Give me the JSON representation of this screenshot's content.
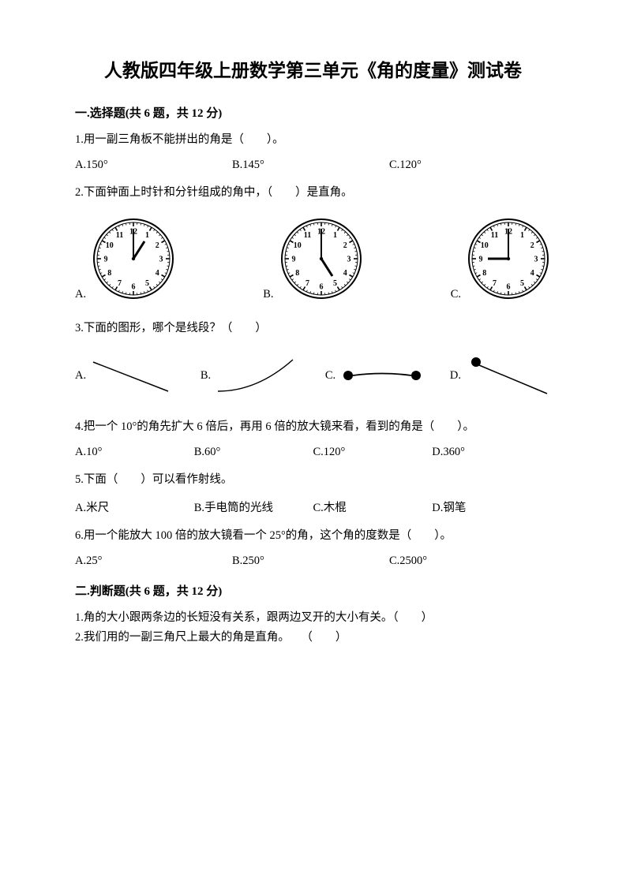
{
  "title": "人教版四年级上册数学第三单元《角的度量》测试卷",
  "section1": {
    "header": "一.选择题(共 6 题，共 12 分)",
    "q1": {
      "text": "1.用一副三角板不能拼出的角是（　　）。",
      "opts": [
        "A.150°",
        "B.145°",
        "C.120°"
      ]
    },
    "q2": {
      "text": "2.下面钟面上时针和分针组成的角中，（　　）是直角。",
      "labels": [
        "A.",
        "B.",
        "C."
      ],
      "clocks": [
        {
          "hourHandAngle": 30,
          "minuteHandAngle": 0
        },
        {
          "hourHandAngle": 150,
          "minuteHandAngle": 0
        },
        {
          "hourHandAngle": 270,
          "minuteHandAngle": 0
        }
      ],
      "clockStyle": {
        "outer_r": 50,
        "inner_r": 47,
        "face_fill": "#ffffff",
        "ring_stroke": "#000000",
        "tick_color": "#000000",
        "hand_color": "#000000",
        "num_font": 10
      }
    },
    "q3": {
      "text": "3.下面的图形，哪个是线段？（　　）",
      "labels": [
        "A.",
        "B.",
        "C.",
        "D."
      ],
      "lineStyle": {
        "stroke": "#000000",
        "stroke_width": 1.5,
        "dot_r": 5,
        "dot_fill": "#000000"
      }
    },
    "q4": {
      "text": "4.把一个 10°的角先扩大 6 倍后，再用 6 倍的放大镜来看，看到的角是（　　）。",
      "opts": [
        "A.10°",
        "B.60°",
        "C.120°",
        "D.360°"
      ]
    },
    "q5": {
      "text": "5.下面（　　）可以看作射线。",
      "opts": [
        "A.米尺",
        "B.手电筒的光线",
        "C.木棍",
        "D.钢笔"
      ]
    },
    "q6": {
      "text": "6.用一个能放大 100 倍的放大镜看一个 25°的角，这个角的度数是（　　）。",
      "opts": [
        "A.25°",
        "B.250°",
        "C.2500°"
      ]
    }
  },
  "section2": {
    "header": "二.判断题(共 6 题，共 12 分)",
    "q1": "1.角的大小跟两条边的长短没有关系，跟两边叉开的大小有关。（　　）",
    "q2": "2.我们用的一副三角尺上最大的角是直角。　　（　　）"
  },
  "colors": {
    "text": "#000000",
    "bg": "#ffffff"
  }
}
